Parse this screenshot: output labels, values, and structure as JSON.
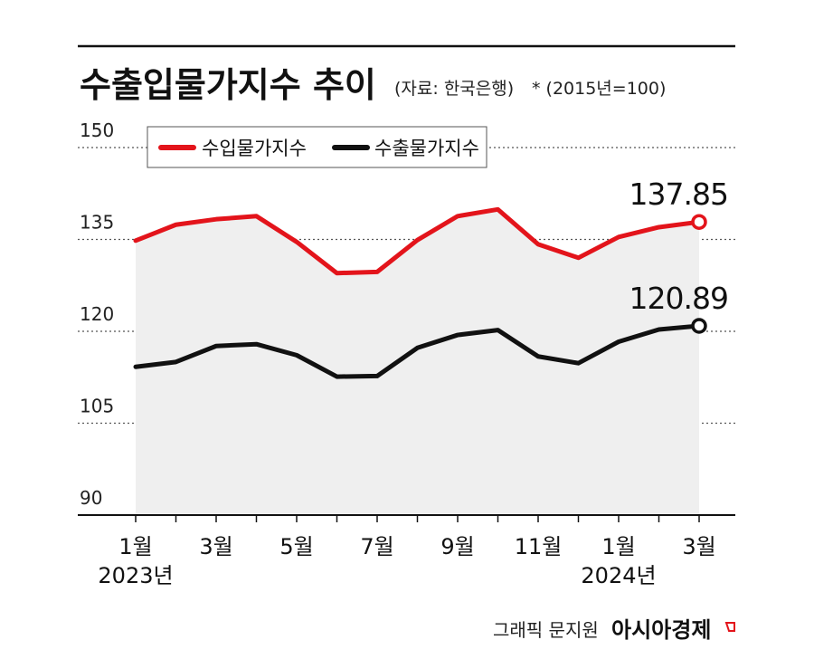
{
  "chart_data": {
    "type": "line",
    "title": "수출입물가지수 추이",
    "source": "(자료: 한국은행)",
    "note": "* (2015년=100)",
    "credit": "그래픽 문지원",
    "brand": "아시아경제",
    "ylim": [
      90,
      150
    ],
    "yticks": [
      "150",
      "135",
      "120",
      "105",
      "90"
    ],
    "ytick_values": [
      150,
      135,
      120,
      105,
      90
    ],
    "x_tick_labels": [
      {
        "index": 0,
        "month": "1월",
        "year": "2023년"
      },
      {
        "index": 2,
        "month": "3월",
        "year": ""
      },
      {
        "index": 4,
        "month": "5월",
        "year": ""
      },
      {
        "index": 6,
        "month": "7월",
        "year": ""
      },
      {
        "index": 8,
        "month": "9월",
        "year": ""
      },
      {
        "index": 10,
        "month": "11월",
        "year": ""
      },
      {
        "index": 12,
        "month": "1월",
        "year": "2024년"
      },
      {
        "index": 14,
        "month": "3월",
        "year": ""
      }
    ],
    "x": [
      "2023-01",
      "2023-02",
      "2023-03",
      "2023-04",
      "2023-05",
      "2023-06",
      "2023-07",
      "2023-08",
      "2023-09",
      "2023-10",
      "2023-11",
      "2023-12",
      "2024-01",
      "2024-02",
      "2024-03"
    ],
    "series": [
      {
        "name": "수입물가지수",
        "color": "#e3141b",
        "values": [
          134.8,
          137.4,
          138.3,
          138.8,
          134.6,
          129.5,
          129.7,
          134.9,
          138.8,
          139.9,
          134.2,
          132.0,
          135.4,
          137.0,
          137.85
        ],
        "end_label": "137.85"
      },
      {
        "name": "수출물가지수",
        "color": "#111111",
        "values": [
          114.2,
          115.0,
          117.6,
          117.9,
          116.1,
          112.6,
          112.7,
          117.3,
          119.4,
          120.2,
          115.9,
          114.8,
          118.3,
          120.3,
          120.89
        ],
        "end_label": "120.89"
      }
    ],
    "grid": true,
    "legend": "top-left"
  }
}
